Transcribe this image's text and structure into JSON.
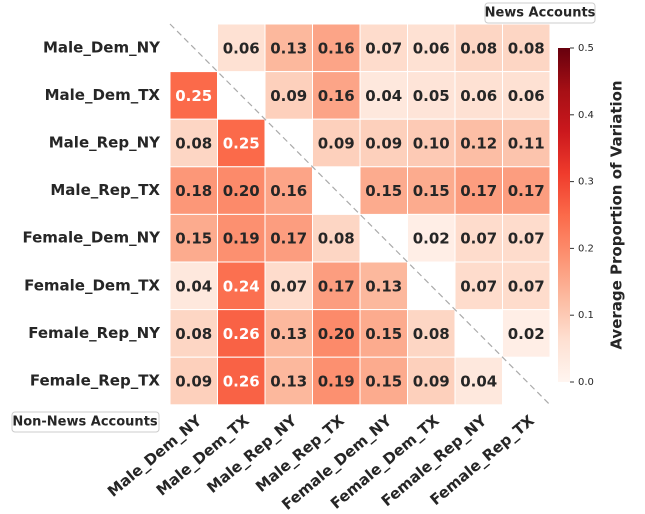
{
  "chart_data": {
    "type": "heatmap",
    "rows": [
      "Male_Dem_NY",
      "Male_Dem_TX",
      "Male_Rep_NY",
      "Male_Rep_TX",
      "Female_Dem_NY",
      "Female_Dem_TX",
      "Female_Rep_NY",
      "Female_Rep_TX"
    ],
    "columns": [
      "Male_Dem_NY",
      "Male_Dem_TX",
      "Male_Rep_NY",
      "Male_Rep_TX",
      "Female_Dem_NY",
      "Female_Dem_TX",
      "Female_Rep_NY",
      "Female_Rep_TX"
    ],
    "values": [
      [
        null,
        0.06,
        0.13,
        0.16,
        0.07,
        0.06,
        0.08,
        0.08
      ],
      [
        0.25,
        null,
        0.09,
        0.16,
        0.04,
        0.05,
        0.06,
        0.06
      ],
      [
        0.08,
        0.25,
        null,
        0.09,
        0.09,
        0.1,
        0.12,
        0.11
      ],
      [
        0.18,
        0.2,
        0.16,
        null,
        0.15,
        0.15,
        0.17,
        0.17
      ],
      [
        0.15,
        0.19,
        0.17,
        0.08,
        null,
        0.02,
        0.07,
        0.07
      ],
      [
        0.04,
        0.24,
        0.07,
        0.17,
        0.13,
        null,
        0.07,
        0.07
      ],
      [
        0.08,
        0.26,
        0.13,
        0.2,
        0.15,
        0.08,
        null,
        0.02
      ],
      [
        0.09,
        0.26,
        0.13,
        0.19,
        0.15,
        0.09,
        0.04,
        null
      ]
    ],
    "value_labels": [
      [
        null,
        "0.06",
        "0.13",
        "0.16",
        "0.07",
        "0.06",
        "0.08",
        "0.08"
      ],
      [
        "0.25",
        null,
        "0.09",
        "0.16",
        "0.04",
        "0.05",
        "0.06",
        "0.06"
      ],
      [
        "0.08",
        "0.25",
        null,
        "0.09",
        "0.09",
        "0.10",
        "0.12",
        "0.11"
      ],
      [
        "0.18",
        "0.20",
        "0.16",
        null,
        "0.15",
        "0.15",
        "0.17",
        "0.17"
      ],
      [
        "0.15",
        "0.19",
        "0.17",
        "0.08",
        null,
        "0.02",
        "0.07",
        "0.07"
      ],
      [
        "0.04",
        "0.24",
        "0.07",
        "0.17",
        "0.13",
        null,
        "0.07",
        "0.07"
      ],
      [
        "0.08",
        "0.26",
        "0.13",
        "0.20",
        "0.15",
        "0.08",
        null,
        "0.02"
      ],
      [
        "0.09",
        "0.26",
        "0.13",
        "0.19",
        "0.15",
        "0.09",
        "0.04",
        null
      ]
    ],
    "colormap": "Reds",
    "zlim": [
      0,
      0.5
    ],
    "zticks": [
      {
        "value": 0,
        "label": "0.0"
      },
      0.1,
      0.2,
      0.3,
      0.4,
      0.5
    ],
    "colorbar_label": "Average Proportion of Variation",
    "annotations": [
      "News Accounts",
      "Non-News Accounts"
    ]
  }
}
